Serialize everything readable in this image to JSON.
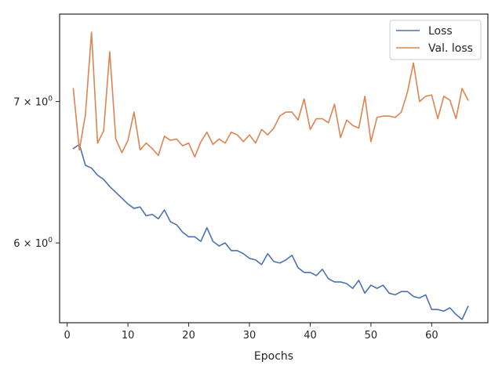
{
  "chart_data": {
    "type": "line",
    "title": "",
    "xlabel": "Epochs",
    "ylabel": "",
    "yscale": "log",
    "xlim": [
      -1.25,
      69.25
    ],
    "ylim": [
      5.5,
      7.7
    ],
    "x_ticks": [
      0,
      10,
      20,
      30,
      40,
      50,
      60
    ],
    "x_tick_labels": [
      "0",
      "10",
      "20",
      "30",
      "40",
      "50",
      "60"
    ],
    "y_ticks": [
      6,
      7
    ],
    "y_tick_labels": [
      {
        "base": "6 × 10",
        "exp": "0"
      },
      {
        "base": "7 × 10",
        "exp": "0"
      }
    ],
    "grid": false,
    "legend_position": "top-right",
    "x": [
      1,
      2,
      3,
      4,
      5,
      6,
      7,
      8,
      9,
      10,
      11,
      12,
      13,
      14,
      15,
      16,
      17,
      18,
      19,
      20,
      21,
      22,
      23,
      24,
      25,
      26,
      27,
      28,
      29,
      30,
      31,
      32,
      33,
      34,
      35,
      36,
      37,
      38,
      39,
      40,
      41,
      42,
      43,
      44,
      45,
      46,
      47,
      48,
      49,
      50,
      51,
      52,
      53,
      54,
      55,
      56,
      57,
      58,
      59,
      60,
      61,
      62,
      63,
      64,
      65,
      66
    ],
    "series": [
      {
        "name": "Loss",
        "color": "#4c72b0",
        "values": [
          6.65,
          6.68,
          6.53,
          6.51,
          6.46,
          6.43,
          6.38,
          6.34,
          6.3,
          6.26,
          6.23,
          6.24,
          6.18,
          6.19,
          6.16,
          6.22,
          6.14,
          6.12,
          6.07,
          6.04,
          6.04,
          6.01,
          6.1,
          6.01,
          5.98,
          6.0,
          5.95,
          5.95,
          5.93,
          5.9,
          5.89,
          5.86,
          5.93,
          5.88,
          5.87,
          5.89,
          5.92,
          5.84,
          5.81,
          5.81,
          5.79,
          5.83,
          5.77,
          5.75,
          5.75,
          5.74,
          5.71,
          5.76,
          5.68,
          5.73,
          5.71,
          5.73,
          5.68,
          5.67,
          5.69,
          5.69,
          5.66,
          5.65,
          5.67,
          5.58,
          5.58,
          5.57,
          5.59,
          5.55,
          5.52,
          5.6
        ]
      },
      {
        "name": "Val. loss",
        "color": "#dd8452",
        "values": [
          7.1,
          6.64,
          6.9,
          7.55,
          6.69,
          6.78,
          7.39,
          6.72,
          6.62,
          6.71,
          6.92,
          6.64,
          6.69,
          6.65,
          6.6,
          6.74,
          6.71,
          6.72,
          6.67,
          6.69,
          6.59,
          6.7,
          6.77,
          6.68,
          6.72,
          6.69,
          6.77,
          6.75,
          6.7,
          6.75,
          6.69,
          6.79,
          6.75,
          6.8,
          6.89,
          6.92,
          6.92,
          6.86,
          7.02,
          6.79,
          6.87,
          6.87,
          6.84,
          6.98,
          6.73,
          6.86,
          6.82,
          6.8,
          7.04,
          6.7,
          6.88,
          6.89,
          6.89,
          6.88,
          6.92,
          7.07,
          7.3,
          7.0,
          7.04,
          7.05,
          6.87,
          7.04,
          7.01,
          6.87,
          7.1,
          7.01
        ]
      }
    ]
  }
}
